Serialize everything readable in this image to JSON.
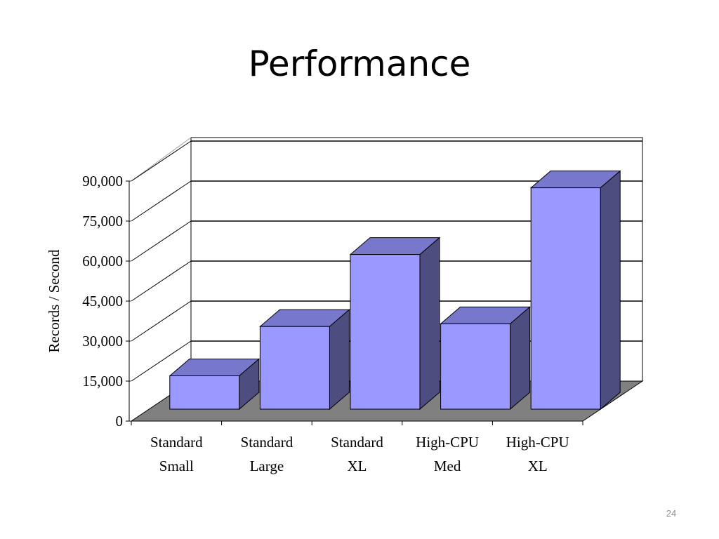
{
  "slide": {
    "title": "Performance",
    "page_number": "24"
  },
  "chart_data": {
    "type": "bar",
    "title": "",
    "xlabel": "",
    "ylabel": "Records / Second",
    "ylim": [
      0,
      90000
    ],
    "yticks": [
      0,
      15000,
      30000,
      45000,
      60000,
      75000,
      90000
    ],
    "ytick_labels": [
      "0",
      "15,000",
      "30,000",
      "45,000",
      "60,000",
      "75,000",
      "90,000"
    ],
    "categories": [
      [
        "Standard",
        "Small"
      ],
      [
        "Standard",
        "Large"
      ],
      [
        "Standard",
        "XL"
      ],
      [
        "High-CPU",
        "Med"
      ],
      [
        "High-CPU",
        "XL"
      ]
    ],
    "values": [
      12500,
      31000,
      58000,
      32000,
      83000
    ],
    "grid": true,
    "three_d": true,
    "colors": {
      "bar_front": "#9999ff",
      "bar_top": "#7777cc",
      "bar_side": "#4d4d80",
      "floor": "#808080"
    }
  }
}
